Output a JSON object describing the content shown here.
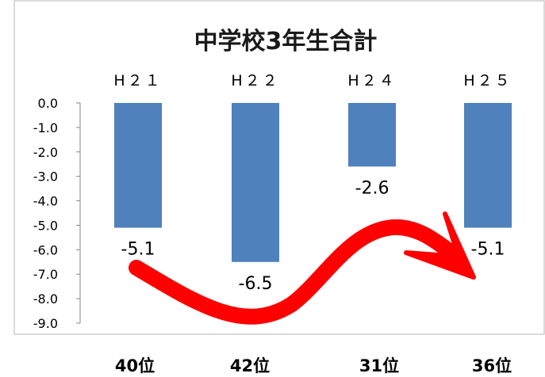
{
  "chart_data": {
    "type": "bar",
    "title": "中学校3年生合計",
    "categories": [
      "H２１",
      "H２２",
      "H２４",
      "H２５"
    ],
    "values": [
      -5.1,
      -6.5,
      -2.6,
      -5.1
    ],
    "value_labels": [
      "-5.1",
      "-6.5",
      "-2.6",
      "-5.1"
    ],
    "ylim": [
      -9.0,
      0.0
    ],
    "y_ticks": [
      "0.0",
      "-1.0",
      "-2.0",
      "-3.0",
      "-4.0",
      "-5.0",
      "-6.0",
      "-7.0",
      "-8.0",
      "-9.0"
    ],
    "x_axis_position": "top",
    "grid": false,
    "legend": "none",
    "ranks": [
      "40位",
      "42位",
      "31位",
      "36位"
    ],
    "annotation": "curved red arrow from the H21 bar toward the H25 bar",
    "bar_color": "#4F81BD",
    "arrow_color": "#FF0000"
  }
}
